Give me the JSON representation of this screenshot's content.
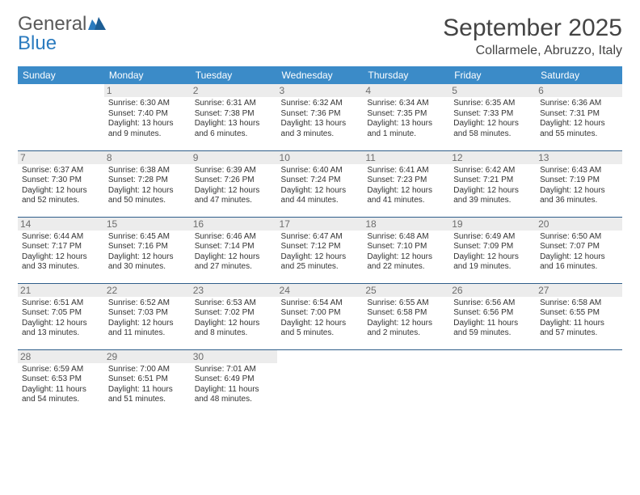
{
  "brand": {
    "part1": "General",
    "part2": "Blue"
  },
  "title": "September 2025",
  "location": "Collarmele, Abruzzo, Italy",
  "colors": {
    "header_bg": "#3b8bc8",
    "header_fg": "#ffffff",
    "row_border": "#2f5e8a",
    "daynum_bg": "#ececec",
    "daynum_fg": "#6d6d6d",
    "brand_gray": "#5a5a5a",
    "brand_blue": "#2b7bbf",
    "body_bg": "#ffffff"
  },
  "fonts": {
    "title_size": 30,
    "loc_size": 16,
    "th_size": 12,
    "daynum_size": 12,
    "info_size": 10
  },
  "weekdays": [
    "Sunday",
    "Monday",
    "Tuesday",
    "Wednesday",
    "Thursday",
    "Friday",
    "Saturday"
  ],
  "weeks": [
    [
      null,
      {
        "n": "1",
        "sr": "Sunrise: 6:30 AM",
        "ss": "Sunset: 7:40 PM",
        "dl": "Daylight: 13 hours and 9 minutes."
      },
      {
        "n": "2",
        "sr": "Sunrise: 6:31 AM",
        "ss": "Sunset: 7:38 PM",
        "dl": "Daylight: 13 hours and 6 minutes."
      },
      {
        "n": "3",
        "sr": "Sunrise: 6:32 AM",
        "ss": "Sunset: 7:36 PM",
        "dl": "Daylight: 13 hours and 3 minutes."
      },
      {
        "n": "4",
        "sr": "Sunrise: 6:34 AM",
        "ss": "Sunset: 7:35 PM",
        "dl": "Daylight: 13 hours and 1 minute."
      },
      {
        "n": "5",
        "sr": "Sunrise: 6:35 AM",
        "ss": "Sunset: 7:33 PM",
        "dl": "Daylight: 12 hours and 58 minutes."
      },
      {
        "n": "6",
        "sr": "Sunrise: 6:36 AM",
        "ss": "Sunset: 7:31 PM",
        "dl": "Daylight: 12 hours and 55 minutes."
      }
    ],
    [
      {
        "n": "7",
        "sr": "Sunrise: 6:37 AM",
        "ss": "Sunset: 7:30 PM",
        "dl": "Daylight: 12 hours and 52 minutes."
      },
      {
        "n": "8",
        "sr": "Sunrise: 6:38 AM",
        "ss": "Sunset: 7:28 PM",
        "dl": "Daylight: 12 hours and 50 minutes."
      },
      {
        "n": "9",
        "sr": "Sunrise: 6:39 AM",
        "ss": "Sunset: 7:26 PM",
        "dl": "Daylight: 12 hours and 47 minutes."
      },
      {
        "n": "10",
        "sr": "Sunrise: 6:40 AM",
        "ss": "Sunset: 7:24 PM",
        "dl": "Daylight: 12 hours and 44 minutes."
      },
      {
        "n": "11",
        "sr": "Sunrise: 6:41 AM",
        "ss": "Sunset: 7:23 PM",
        "dl": "Daylight: 12 hours and 41 minutes."
      },
      {
        "n": "12",
        "sr": "Sunrise: 6:42 AM",
        "ss": "Sunset: 7:21 PM",
        "dl": "Daylight: 12 hours and 39 minutes."
      },
      {
        "n": "13",
        "sr": "Sunrise: 6:43 AM",
        "ss": "Sunset: 7:19 PM",
        "dl": "Daylight: 12 hours and 36 minutes."
      }
    ],
    [
      {
        "n": "14",
        "sr": "Sunrise: 6:44 AM",
        "ss": "Sunset: 7:17 PM",
        "dl": "Daylight: 12 hours and 33 minutes."
      },
      {
        "n": "15",
        "sr": "Sunrise: 6:45 AM",
        "ss": "Sunset: 7:16 PM",
        "dl": "Daylight: 12 hours and 30 minutes."
      },
      {
        "n": "16",
        "sr": "Sunrise: 6:46 AM",
        "ss": "Sunset: 7:14 PM",
        "dl": "Daylight: 12 hours and 27 minutes."
      },
      {
        "n": "17",
        "sr": "Sunrise: 6:47 AM",
        "ss": "Sunset: 7:12 PM",
        "dl": "Daylight: 12 hours and 25 minutes."
      },
      {
        "n": "18",
        "sr": "Sunrise: 6:48 AM",
        "ss": "Sunset: 7:10 PM",
        "dl": "Daylight: 12 hours and 22 minutes."
      },
      {
        "n": "19",
        "sr": "Sunrise: 6:49 AM",
        "ss": "Sunset: 7:09 PM",
        "dl": "Daylight: 12 hours and 19 minutes."
      },
      {
        "n": "20",
        "sr": "Sunrise: 6:50 AM",
        "ss": "Sunset: 7:07 PM",
        "dl": "Daylight: 12 hours and 16 minutes."
      }
    ],
    [
      {
        "n": "21",
        "sr": "Sunrise: 6:51 AM",
        "ss": "Sunset: 7:05 PM",
        "dl": "Daylight: 12 hours and 13 minutes."
      },
      {
        "n": "22",
        "sr": "Sunrise: 6:52 AM",
        "ss": "Sunset: 7:03 PM",
        "dl": "Daylight: 12 hours and 11 minutes."
      },
      {
        "n": "23",
        "sr": "Sunrise: 6:53 AM",
        "ss": "Sunset: 7:02 PM",
        "dl": "Daylight: 12 hours and 8 minutes."
      },
      {
        "n": "24",
        "sr": "Sunrise: 6:54 AM",
        "ss": "Sunset: 7:00 PM",
        "dl": "Daylight: 12 hours and 5 minutes."
      },
      {
        "n": "25",
        "sr": "Sunrise: 6:55 AM",
        "ss": "Sunset: 6:58 PM",
        "dl": "Daylight: 12 hours and 2 minutes."
      },
      {
        "n": "26",
        "sr": "Sunrise: 6:56 AM",
        "ss": "Sunset: 6:56 PM",
        "dl": "Daylight: 11 hours and 59 minutes."
      },
      {
        "n": "27",
        "sr": "Sunrise: 6:58 AM",
        "ss": "Sunset: 6:55 PM",
        "dl": "Daylight: 11 hours and 57 minutes."
      }
    ],
    [
      {
        "n": "28",
        "sr": "Sunrise: 6:59 AM",
        "ss": "Sunset: 6:53 PM",
        "dl": "Daylight: 11 hours and 54 minutes."
      },
      {
        "n": "29",
        "sr": "Sunrise: 7:00 AM",
        "ss": "Sunset: 6:51 PM",
        "dl": "Daylight: 11 hours and 51 minutes."
      },
      {
        "n": "30",
        "sr": "Sunrise: 7:01 AM",
        "ss": "Sunset: 6:49 PM",
        "dl": "Daylight: 11 hours and 48 minutes."
      },
      null,
      null,
      null,
      null
    ]
  ]
}
